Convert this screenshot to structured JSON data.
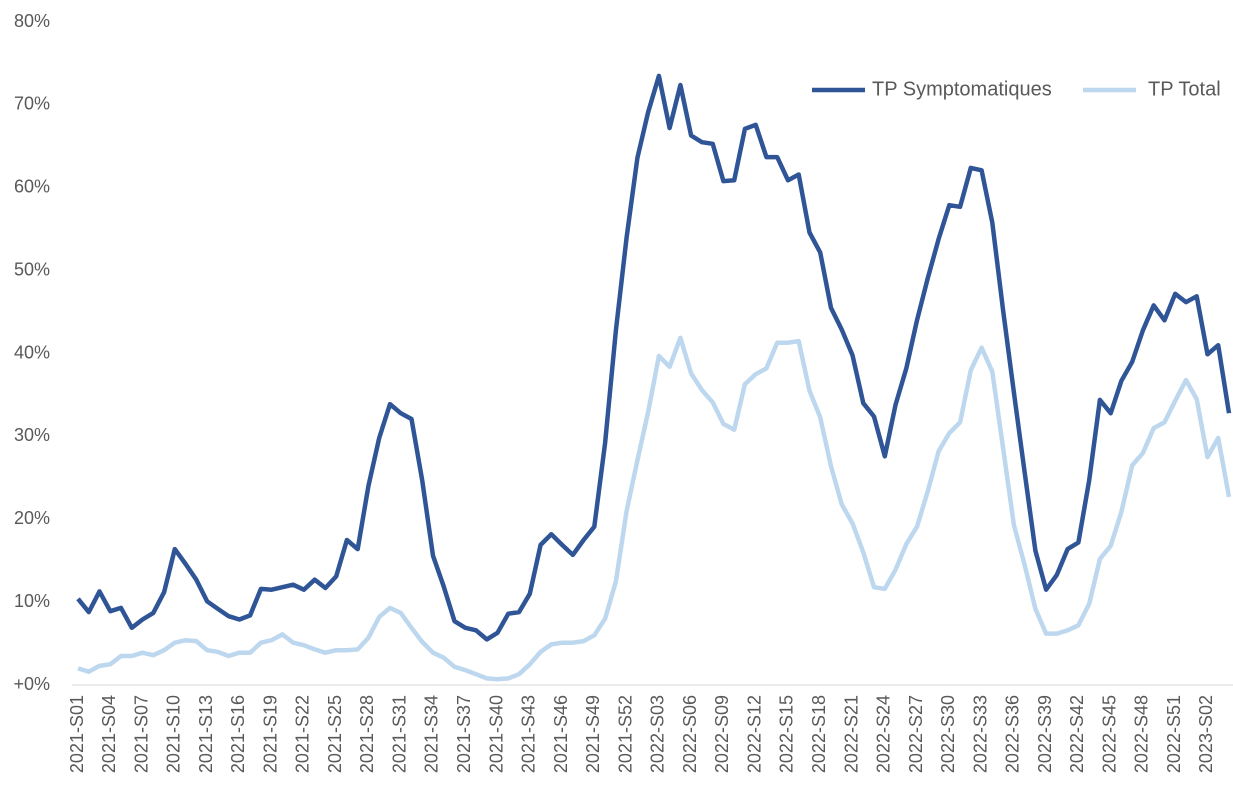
{
  "chart_data": {
    "type": "line",
    "categories": [
      "2021-S01",
      null,
      null,
      "2021-S04",
      null,
      null,
      "2021-S07",
      null,
      null,
      "2021-S10",
      null,
      null,
      "2021-S13",
      null,
      null,
      "2021-S16",
      null,
      null,
      "2021-S19",
      null,
      null,
      "2021-S22",
      null,
      null,
      "2021-S25",
      null,
      null,
      "2021-S28",
      null,
      null,
      "2021-S31",
      null,
      null,
      "2021-S34",
      null,
      null,
      "2021-S37",
      null,
      null,
      "2021-S40",
      null,
      null,
      "2021-S43",
      null,
      null,
      "2021-S46",
      null,
      null,
      "2021-S49",
      null,
      null,
      "2021-S52",
      null,
      null,
      "2022-S03",
      null,
      null,
      "2022-S06",
      null,
      null,
      "2022-S09",
      null,
      null,
      "2022-S12",
      null,
      null,
      "2022-S15",
      null,
      null,
      "2022-S18",
      null,
      null,
      "2022-S21",
      null,
      null,
      "2022-S24",
      null,
      null,
      "2022-S27",
      null,
      null,
      "2022-S30",
      null,
      null,
      "2022-S33",
      null,
      null,
      "2022-S36",
      null,
      null,
      "2022-S39",
      null,
      null,
      "2022-S42",
      null,
      null,
      "2022-S45",
      null,
      null,
      "2022-S48",
      null,
      null,
      "2022-S51",
      null,
      null,
      "2023-S02",
      null,
      null
    ],
    "series": [
      {
        "name": "TP Symptomatiques",
        "color": "#2f5597",
        "values": [
          10.4,
          8.8,
          11.3,
          8.9,
          9.3,
          6.9,
          7.9,
          8.7,
          11.2,
          16.4,
          14.6,
          12.7,
          10.1,
          9.2,
          8.3,
          7.9,
          8.4,
          11.6,
          11.5,
          11.8,
          12.1,
          11.5,
          12.7,
          11.7,
          13.1,
          17.5,
          16.4,
          24.0,
          29.8,
          33.9,
          32.8,
          32.1,
          24.7,
          15.6,
          11.9,
          7.7,
          6.9,
          6.6,
          5.5,
          6.3,
          8.6,
          8.8,
          11.0,
          16.9,
          18.2,
          16.9,
          15.7,
          17.5,
          19.1,
          29.2,
          42.8,
          54.0,
          63.6,
          69.1,
          73.5,
          67.2,
          72.4,
          66.3,
          65.5,
          65.3,
          60.8,
          60.9,
          67.1,
          67.6,
          63.7,
          63.7,
          60.9,
          61.6,
          54.6,
          52.2,
          45.5,
          42.9,
          39.8,
          34.0,
          32.4,
          27.6,
          33.8,
          38.2,
          44.0,
          49.1,
          53.8,
          57.9,
          57.7,
          62.4,
          62.1,
          55.8,
          45.2,
          35.3,
          25.7,
          16.2,
          11.5,
          13.3,
          16.4,
          17.2,
          24.7,
          34.4,
          32.8,
          36.7,
          39.0,
          42.8,
          45.8,
          44.0,
          47.2,
          46.2,
          46.9,
          39.9,
          41.0,
          32.8
        ]
      },
      {
        "name": "TP Total",
        "color": "#bdd7ee",
        "values": [
          2.0,
          1.6,
          2.3,
          2.5,
          3.5,
          3.5,
          3.9,
          3.6,
          4.2,
          5.1,
          5.4,
          5.3,
          4.2,
          4.0,
          3.5,
          3.9,
          3.9,
          5.1,
          5.4,
          6.1,
          5.1,
          4.8,
          4.3,
          3.9,
          4.2,
          4.2,
          4.3,
          5.7,
          8.2,
          9.3,
          8.7,
          6.9,
          5.2,
          3.9,
          3.3,
          2.2,
          1.8,
          1.3,
          0.8,
          0.7,
          0.8,
          1.3,
          2.5,
          4.0,
          4.9,
          5.1,
          5.1,
          5.3,
          6.0,
          8.0,
          12.5,
          21.0,
          27.1,
          32.9,
          39.7,
          38.4,
          41.9,
          37.6,
          35.6,
          34.1,
          31.5,
          30.8,
          36.3,
          37.5,
          38.2,
          41.3,
          41.3,
          41.5,
          35.5,
          32.3,
          26.4,
          21.8,
          19.5,
          16.0,
          11.8,
          11.6,
          13.9,
          17.0,
          19.1,
          23.4,
          28.2,
          30.4,
          31.7,
          38.0,
          40.7,
          37.8,
          28.6,
          19.3,
          14.5,
          9.2,
          6.2,
          6.2,
          6.6,
          7.2,
          9.8,
          15.2,
          16.8,
          20.9,
          26.5,
          28.0,
          31.0,
          31.7,
          34.3,
          36.8,
          34.5,
          27.5,
          29.8,
          22.7
        ]
      }
    ],
    "ylim": [
      0,
      80
    ],
    "yticks": [
      {
        "value": 0,
        "label": "+0%"
      },
      {
        "value": 10,
        "label": "10%"
      },
      {
        "value": 20,
        "label": "20%"
      },
      {
        "value": 30,
        "label": "30%"
      },
      {
        "value": 40,
        "label": "40%"
      },
      {
        "value": 50,
        "label": "50%"
      },
      {
        "value": 60,
        "label": "60%"
      },
      {
        "value": 70,
        "label": "70%"
      },
      {
        "value": 80,
        "label": "80%"
      }
    ],
    "grid": false,
    "legend": "top-right"
  }
}
